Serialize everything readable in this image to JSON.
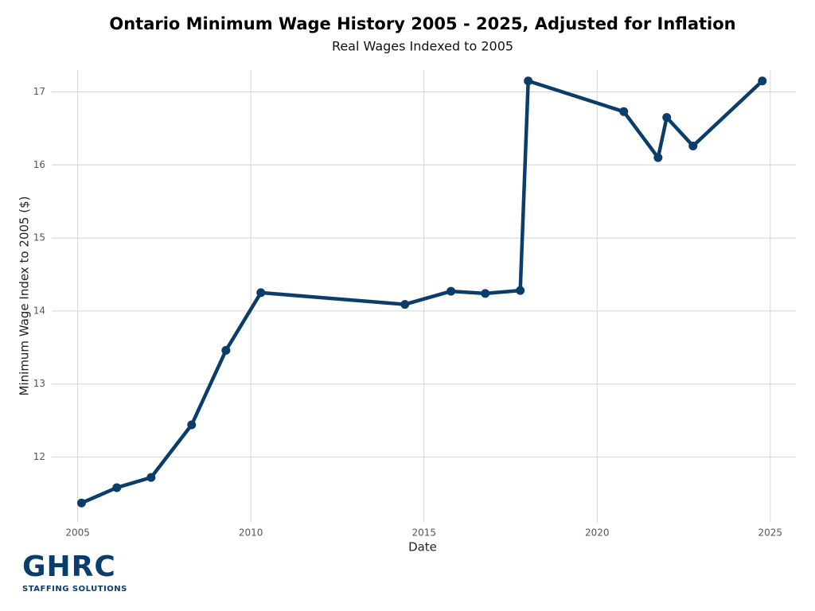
{
  "chart_data": {
    "type": "line",
    "title": "Ontario Minimum Wage History 2005 - 2025, Adjusted for Inflation",
    "subtitle": "Real Wages Indexed to 2005",
    "x_label": "Date",
    "y_label": "Minimum Wage Index to 2005 ($)",
    "x": [
      2005.11,
      2006.13,
      2007.12,
      2008.29,
      2009.28,
      2010.29,
      2014.45,
      2015.78,
      2016.77,
      2017.78,
      2018.01,
      2020.77,
      2021.76,
      2022.01,
      2022.77,
      2024.77
    ],
    "series": [
      {
        "name": "Minimum Wage",
        "color": "#0b3d6b",
        "values": [
          11.37,
          11.58,
          11.72,
          12.44,
          13.46,
          14.25,
          14.09,
          14.27,
          14.24,
          14.28,
          17.15,
          16.73,
          16.1,
          16.65,
          16.26,
          17.15
        ]
      }
    ],
    "xlim": [
      2004.25,
      2025.74
    ],
    "xticks": [
      2005,
      2010,
      2015,
      2020,
      2025
    ],
    "ylim": [
      11.1,
      17.3
    ],
    "yticks": [
      12,
      13,
      14,
      15,
      16,
      17
    ],
    "grid": true
  },
  "logo": {
    "name": "GHRC",
    "tagline": "STAFFING SOLUTIONS"
  }
}
